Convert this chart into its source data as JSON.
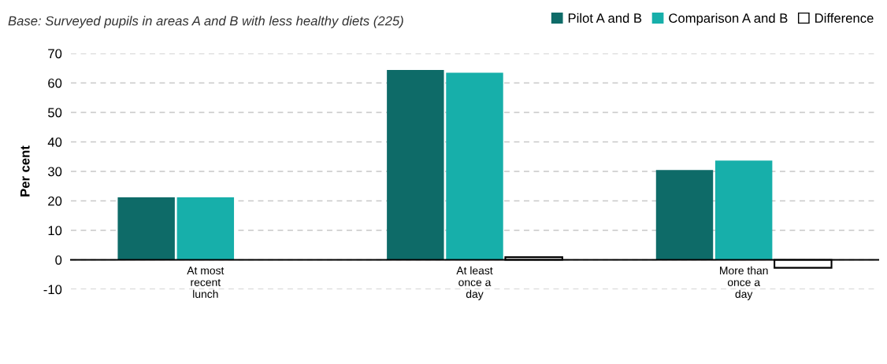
{
  "chart_data": {
    "type": "bar",
    "annotations": [
      "Base: Surveyed pupils in areas A and B with less healthy diets (225)"
    ],
    "ylabel": "Per cent",
    "categories": [
      "At most\nrecent\nlunch",
      "At least\nonce a\nday",
      "More than\nonce a\nday"
    ],
    "series": [
      {
        "name": "Pilot A and B",
        "color": "#0e6b68",
        "values": [
          21.2,
          64.4,
          30.5
        ]
      },
      {
        "name": "Comparison A and B",
        "color": "#17afaa",
        "values": [
          21.2,
          63.5,
          33.7
        ]
      },
      {
        "name": "Difference",
        "color": "#ffffff",
        "values": [
          null,
          0.9,
          -2.7
        ]
      }
    ],
    "ylim": [
      -10,
      70
    ],
    "yticks": [
      -10,
      0,
      10,
      20,
      30,
      40,
      50,
      60,
      70
    ],
    "grid": "y",
    "legend": "top right"
  }
}
